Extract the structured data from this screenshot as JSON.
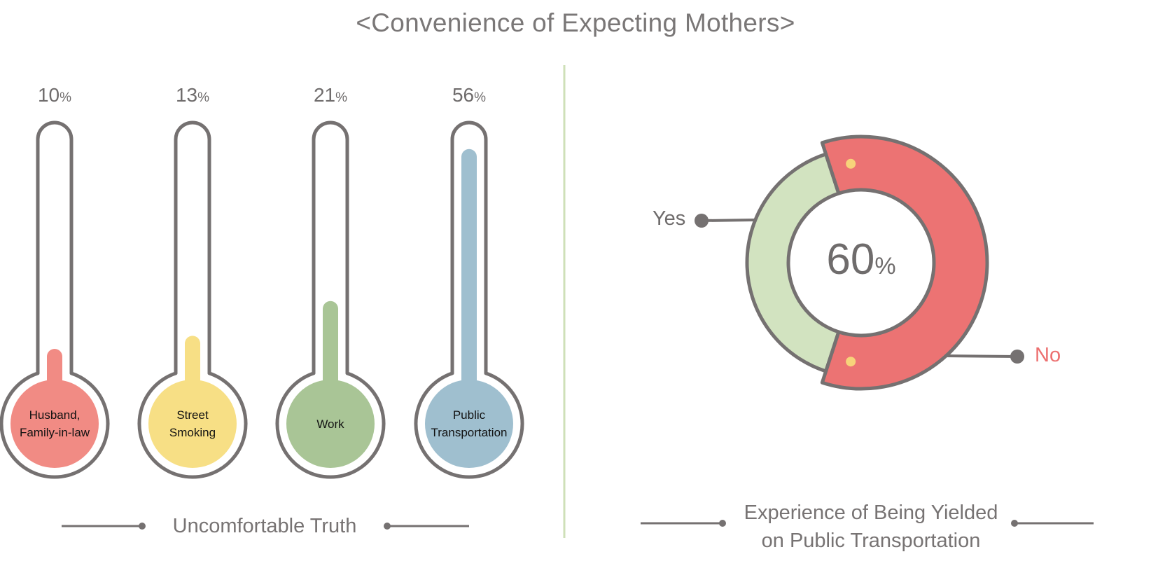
{
  "title": "<Convenience of Expecting Mothers>",
  "colors": {
    "outline": "#757171",
    "thermo_fills": [
      "#f18b84",
      "#f7df85",
      "#a9c596",
      "#9fbfcf"
    ],
    "yes": "#d2e3c0",
    "no": "#ec7373",
    "no_text": "#ec6f6f",
    "dot": "#f7d37a",
    "divider": "#cfe0b8"
  },
  "chart_data": [
    {
      "type": "bar",
      "style": "thermometer",
      "categories": [
        "Husband,\nFamily-in-law",
        "Street\nSmoking",
        "Work",
        "Public\nTransportation"
      ],
      "values": [
        10,
        13,
        21,
        56
      ],
      "value_labels": [
        "10",
        "13",
        "21",
        "56"
      ],
      "unit": "%",
      "ylim": [
        0,
        60
      ],
      "caption": "Uncomfortable Truth"
    },
    {
      "type": "pie",
      "style": "donut",
      "labels": [
        "Yes",
        "No"
      ],
      "values": [
        40,
        60
      ],
      "center_value": "60",
      "center_unit": "%",
      "caption_lines": [
        "Experience of Being Yielded",
        "on Public Transportation"
      ]
    }
  ]
}
